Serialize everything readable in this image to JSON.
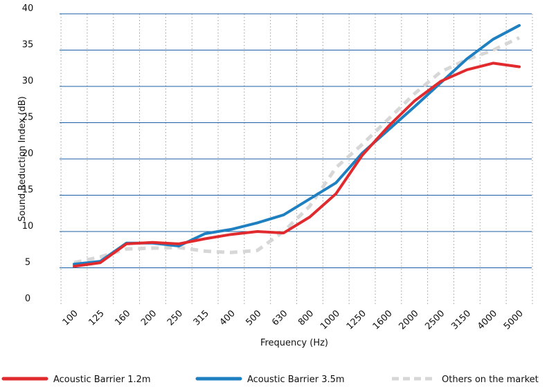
{
  "chart_data": {
    "type": "line",
    "title": "",
    "xlabel": "Frequency (Hz)",
    "ylabel": "Sound Reduction Index (dB)",
    "categories": [
      "100",
      "125",
      "160",
      "200",
      "250",
      "315",
      "400",
      "500",
      "630",
      "800",
      "1000",
      "1250",
      "1600",
      "2000",
      "2500",
      "3150",
      "4000",
      "5000"
    ],
    "y_ticks": [
      "0",
      "5",
      "10",
      "15",
      "20",
      "25",
      "30",
      "35",
      "40"
    ],
    "ylim": [
      0,
      40
    ],
    "grid": {
      "horizontal": true,
      "vertical": true,
      "vertical_style": "dotted"
    },
    "legend_position": "bottom",
    "series": [
      {
        "name": "Acoustic Barrier 1.2m",
        "color": "#e12a2e",
        "style": "solid",
        "values": [
          5.2,
          5.7,
          8.3,
          8.5,
          8.3,
          9.0,
          9.6,
          10.0,
          9.8,
          12.0,
          15.2,
          20.5,
          24.5,
          28.0,
          30.7,
          32.3,
          33.2,
          32.7
        ]
      },
      {
        "name": "Acoustic Barrier 3.5m",
        "color": "#1e7fc1",
        "style": "solid",
        "values": [
          5.5,
          5.9,
          8.4,
          8.4,
          8.0,
          9.7,
          10.3,
          11.2,
          12.3,
          14.5,
          16.7,
          20.8,
          24.0,
          27.2,
          30.5,
          33.8,
          36.5,
          38.4
        ]
      },
      {
        "name": "Others on the market",
        "color": "#d7d7d7",
        "style": "dashed",
        "values": [
          5.7,
          6.5,
          7.6,
          7.7,
          7.8,
          7.3,
          7.1,
          7.4,
          10.0,
          13.5,
          18.8,
          22.0,
          25.5,
          29.0,
          32.0,
          33.7,
          35.0,
          36.7
        ]
      }
    ]
  }
}
